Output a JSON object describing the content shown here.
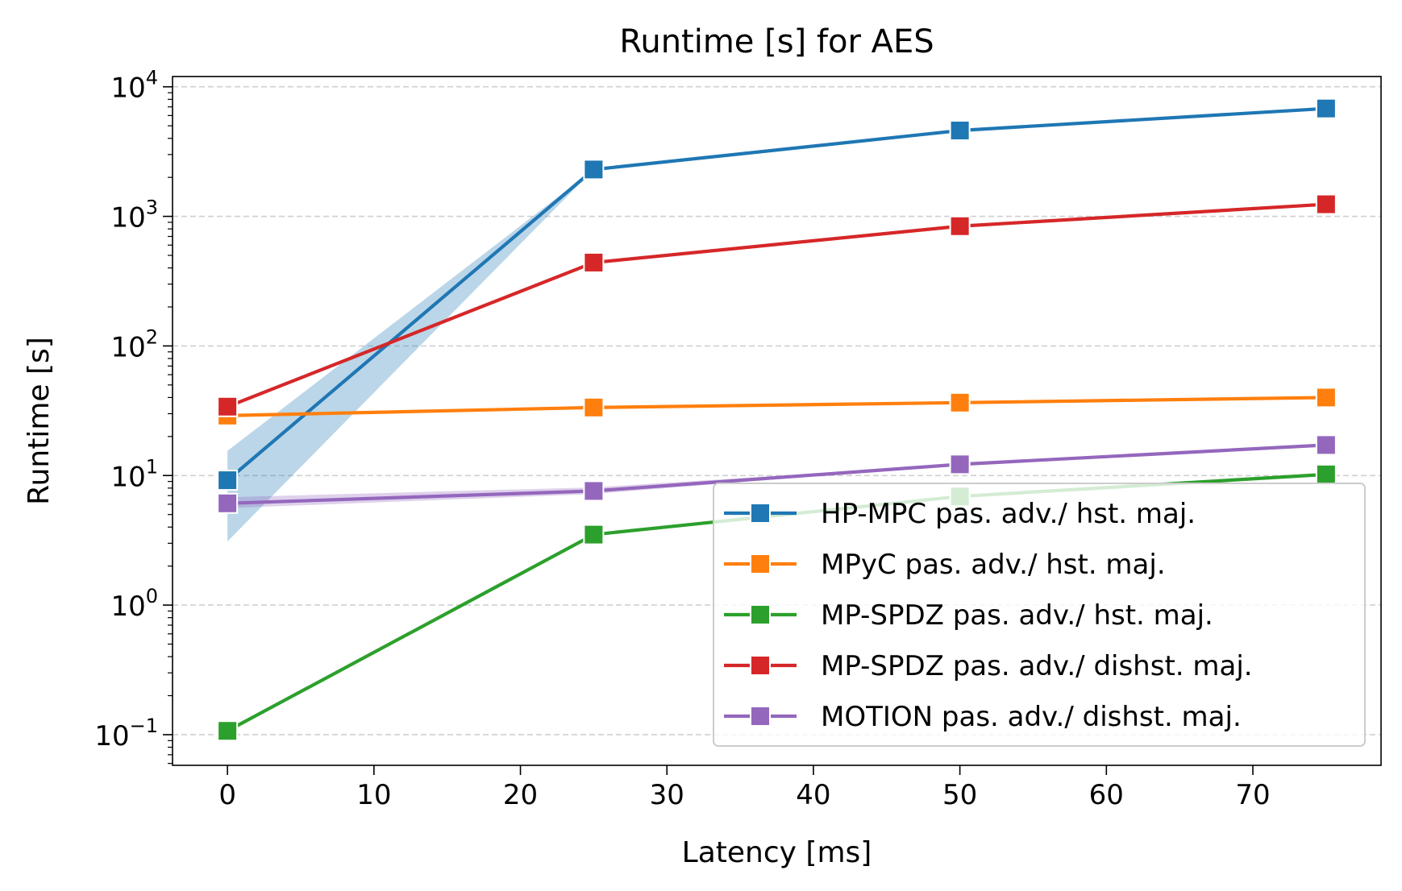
{
  "chart_data": {
    "type": "line",
    "title": "Runtime [s] for AES",
    "xlabel": "Latency [ms]",
    "ylabel": "Runtime [s]",
    "xlim": [
      -3.75,
      78.75
    ],
    "ylim": [
      0.058,
      12000
    ],
    "y_scale": "log",
    "grid": "horizontal dashed",
    "x_ticks": [
      "0",
      "10",
      "20",
      "30",
      "40",
      "50",
      "60",
      "70"
    ],
    "y_ticks": [
      {
        "base": "10",
        "exp": "−1",
        "value": 0.1
      },
      {
        "base": "10",
        "exp": "0",
        "value": 1
      },
      {
        "base": "10",
        "exp": "1",
        "value": 10
      },
      {
        "base": "10",
        "exp": "2",
        "value": 100
      },
      {
        "base": "10",
        "exp": "3",
        "value": 1000
      },
      {
        "base": "10",
        "exp": "4",
        "value": 10000
      }
    ],
    "legend_position": "lower right",
    "series": [
      {
        "name": "HP-MPC pas. adv./ hst. maj.",
        "color": "#1f77b4",
        "x": [
          0,
          25,
          50,
          75
        ],
        "y": [
          9.2,
          2300,
          4600,
          6800
        ],
        "band_low": [
          3.1,
          2300,
          4600,
          6800
        ],
        "band_high": [
          15.5,
          2300,
          4600,
          6800
        ]
      },
      {
        "name": "MPyC pas. adv./ hst. maj.",
        "color": "#ff7f0e",
        "x": [
          0,
          25,
          50,
          75
        ],
        "y": [
          29,
          33.5,
          36.5,
          40
        ]
      },
      {
        "name": "MP-SPDZ pas. adv./ hst. maj.",
        "color": "#2ca02c",
        "x": [
          0,
          25,
          50,
          75
        ],
        "y": [
          0.107,
          3.5,
          6.9,
          10.2
        ]
      },
      {
        "name": "MP-SPDZ pas. adv./ dishst. maj.",
        "color": "#d62728",
        "x": [
          0,
          25,
          50,
          75
        ],
        "y": [
          34,
          440,
          840,
          1240
        ]
      },
      {
        "name": "MOTION pas. adv./ dishst. maj.",
        "color": "#9467bd",
        "x": [
          0,
          25,
          50,
          75
        ],
        "y": [
          6.1,
          7.6,
          12.2,
          17.2
        ],
        "band_low": [
          5.6,
          7.2,
          12.2,
          17.2
        ],
        "band_high": [
          6.8,
          8.1,
          12.2,
          17.2
        ]
      }
    ]
  }
}
